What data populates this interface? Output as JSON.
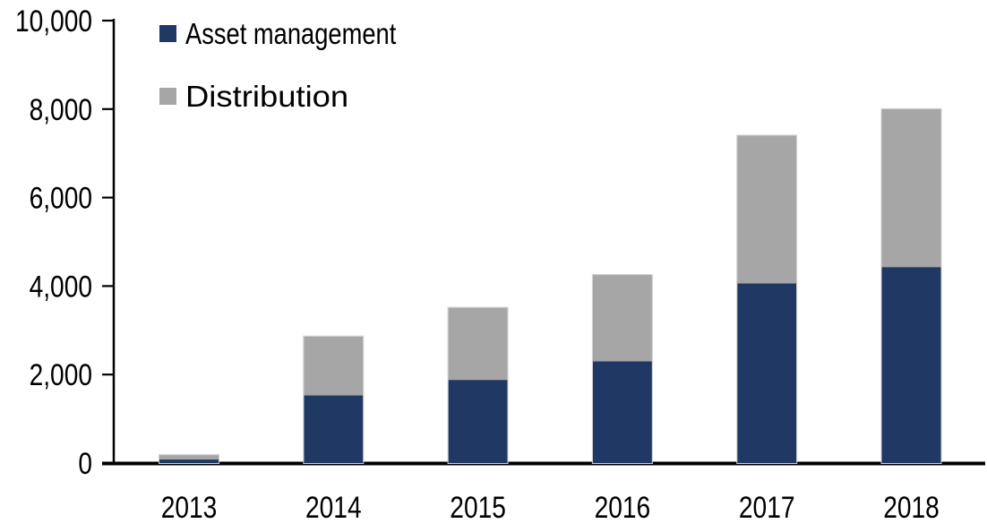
{
  "chart_data": {
    "type": "bar",
    "stacked": true,
    "title": "",
    "xlabel": "",
    "ylabel": "",
    "categories": [
      "2013",
      "2014",
      "2015",
      "2016",
      "2017",
      "2018"
    ],
    "series": [
      {
        "name": "Asset management",
        "color": "#1f3864",
        "values": [
          80,
          1530,
          1880,
          2300,
          4060,
          4430
        ]
      },
      {
        "name": "Distribution",
        "color": "#a6a6a6",
        "values": [
          100,
          1330,
          1630,
          1950,
          3340,
          3570
        ]
      }
    ],
    "totals": [
      180,
      2860,
      3510,
      4250,
      7400,
      8000
    ],
    "ylim": [
      0,
      10000
    ],
    "yticks": [
      {
        "value": 0,
        "label": "0"
      },
      {
        "value": 2000,
        "label": "2,000"
      },
      {
        "value": 4000,
        "label": "4,000"
      },
      {
        "value": 6000,
        "label": "6,000"
      },
      {
        "value": 8000,
        "label": "8,000"
      },
      {
        "value": 10000,
        "label": "10,000"
      }
    ],
    "grid": false,
    "legend_position": "top-left",
    "colors": {
      "axis": "#000000",
      "text": "#000000",
      "bar_outline": "#cfcfcf",
      "background": "#ffffff"
    }
  }
}
